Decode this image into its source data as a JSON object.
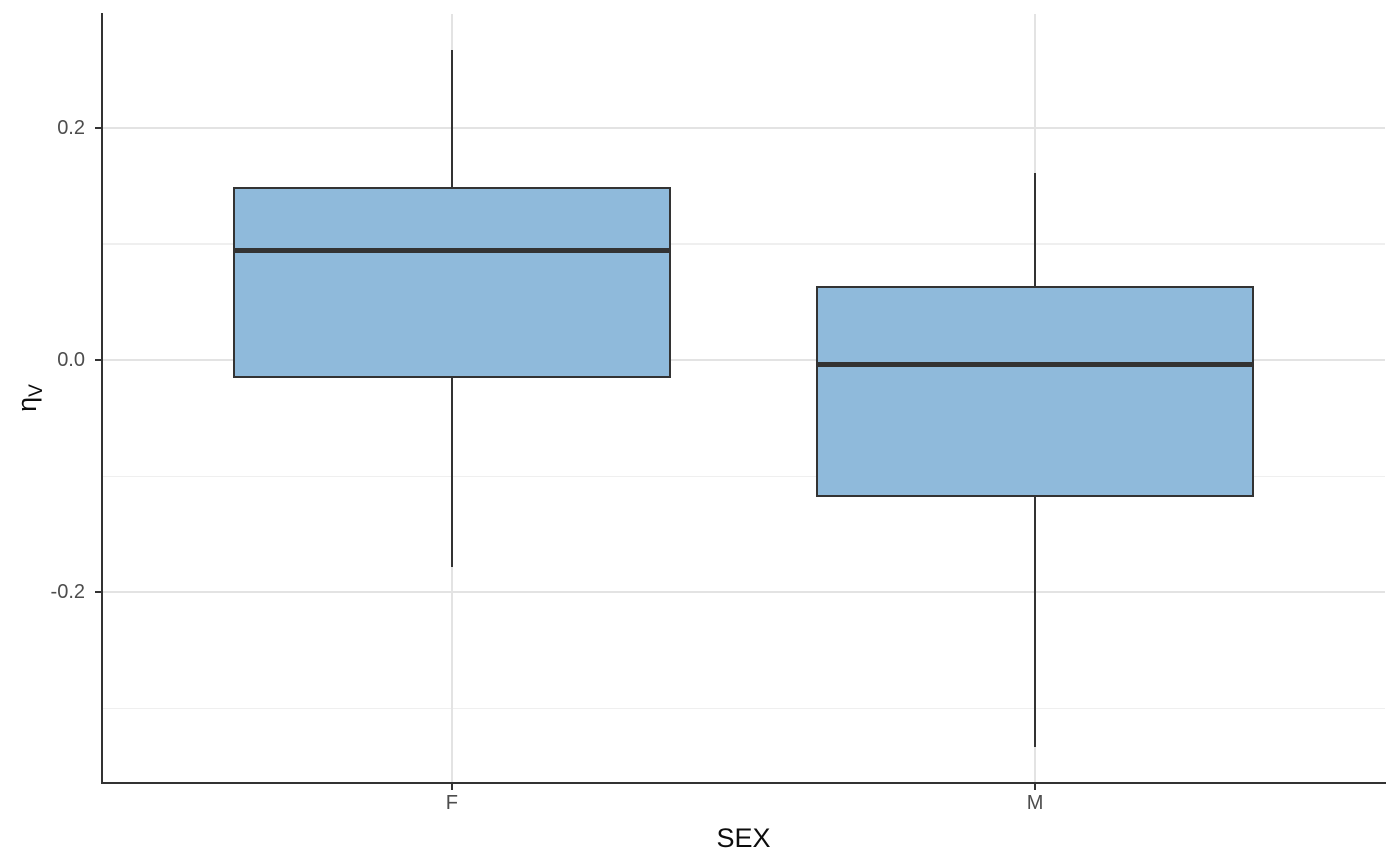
{
  "chart_data": {
    "type": "boxplot",
    "title": "",
    "xlabel": "SEX",
    "ylabel": {
      "base": "η",
      "sub": "V"
    },
    "categories": [
      "F",
      "M"
    ],
    "series": [
      {
        "category": "F",
        "min": -0.178,
        "q1": -0.014,
        "median": 0.094,
        "q3": 0.148,
        "max": 0.267
      },
      {
        "category": "M",
        "min": -0.333,
        "q1": -0.117,
        "median": -0.004,
        "q3": 0.063,
        "max": 0.161
      }
    ],
    "y_axis": {
      "ticks": [
        {
          "value": 0.2,
          "label": "0.2"
        },
        {
          "value": 0.0,
          "label": "0.0"
        },
        {
          "value": -0.2,
          "label": "-0.2"
        }
      ],
      "minor_ticks": [
        0.1,
        -0.1,
        -0.3
      ],
      "range": [
        -0.364,
        0.298
      ]
    },
    "layout_hints": {
      "grid": "major+minor horizontal, major vertical at categories",
      "legend": "none",
      "box_width_ratio": 0.75,
      "category_expand": 0.6
    },
    "colors": {
      "background": "#FFFFFF",
      "box_fill": "#8FBADB",
      "box_stroke": "#333333",
      "median_stroke": "#333333",
      "whisker_stroke": "#333333",
      "grid_major": "#E3E3E3",
      "grid_minor": "#EFEFEF",
      "axis_line": "#333333",
      "tick_mark": "#333333",
      "tick_label": "#4D4D4D",
      "axis_title": "#0D0D0D"
    }
  }
}
